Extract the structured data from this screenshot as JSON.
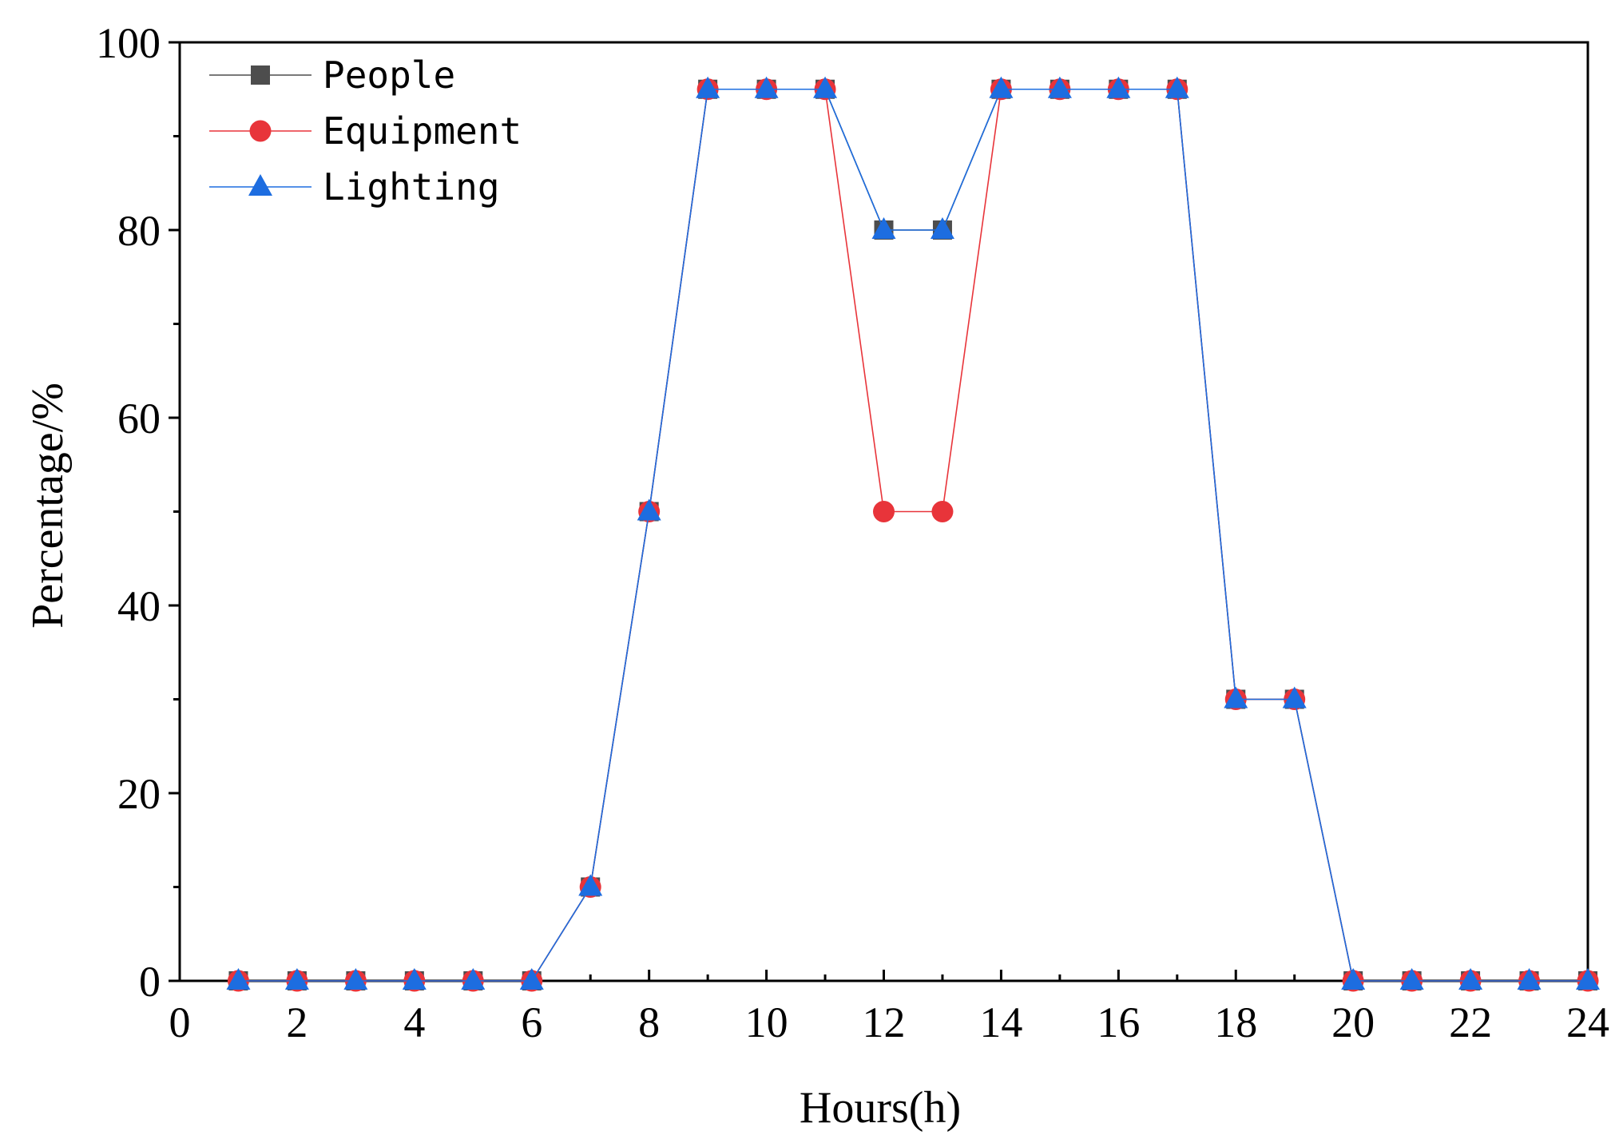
{
  "chart_data": {
    "type": "line",
    "title": "",
    "xlabel": "Hours(h)",
    "ylabel": "Percentage/%",
    "xlim": [
      0,
      24
    ],
    "ylim": [
      0,
      100
    ],
    "x_ticks": [
      0,
      2,
      4,
      6,
      8,
      10,
      12,
      14,
      16,
      18,
      20,
      22,
      24
    ],
    "y_ticks": [
      0,
      20,
      40,
      60,
      80,
      100
    ],
    "grid": false,
    "legend_position": "top-left",
    "x": [
      1,
      2,
      3,
      4,
      5,
      6,
      7,
      8,
      9,
      10,
      11,
      12,
      13,
      14,
      15,
      16,
      17,
      18,
      19,
      20,
      21,
      22,
      23,
      24
    ],
    "series": [
      {
        "name": "People",
        "marker": "square",
        "color": "#4d4d4d",
        "values": [
          0,
          0,
          0,
          0,
          0,
          0,
          10,
          50,
          95,
          95,
          95,
          80,
          80,
          95,
          95,
          95,
          95,
          30,
          30,
          0,
          0,
          0,
          0,
          0
        ]
      },
      {
        "name": "Equipment",
        "marker": "circle",
        "color": "#e8343a",
        "values": [
          0,
          0,
          0,
          0,
          0,
          0,
          10,
          50,
          95,
          95,
          95,
          50,
          50,
          95,
          95,
          95,
          95,
          30,
          30,
          0,
          0,
          0,
          0,
          0
        ]
      },
      {
        "name": "Lighting",
        "marker": "triangle",
        "color": "#1d6de0",
        "values": [
          0,
          0,
          0,
          0,
          0,
          0,
          10,
          50,
          95,
          95,
          95,
          80,
          80,
          95,
          95,
          95,
          95,
          30,
          30,
          0,
          0,
          0,
          0,
          0
        ]
      }
    ]
  }
}
